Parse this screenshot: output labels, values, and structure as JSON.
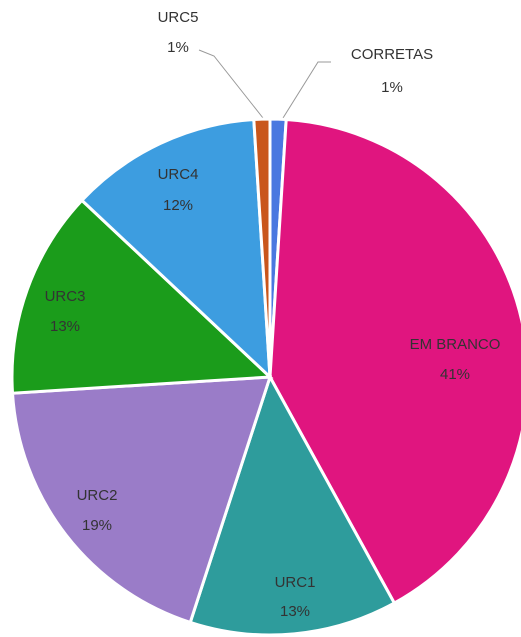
{
  "chart_data": {
    "type": "pie",
    "categories": [
      "CORRETAS",
      "EM BRANCO",
      "URC1",
      "URC2",
      "URC3",
      "URC4",
      "URC5"
    ],
    "values": [
      1,
      41,
      13,
      19,
      13,
      12,
      1
    ],
    "value_labels": [
      "1%",
      "41%",
      "13%",
      "19%",
      "13%",
      "12%",
      "1%"
    ],
    "colors": [
      "#4a78e0",
      "#e0157f",
      "#2e9c9c",
      "#9a7cc8",
      "#1b9c1b",
      "#3d9de0",
      "#c9561c"
    ]
  }
}
